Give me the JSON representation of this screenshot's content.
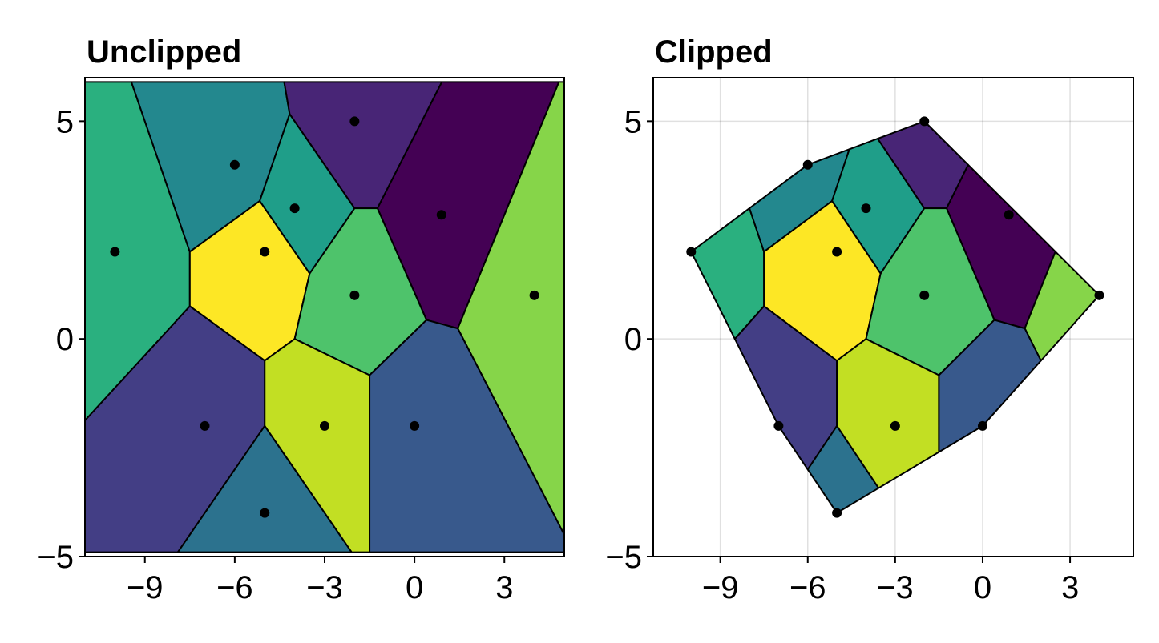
{
  "chart_data": [
    {
      "type": "voronoi",
      "title": "Unclipped",
      "clip": false,
      "grid": false,
      "x": [
        -10,
        -6,
        -4,
        -5,
        -2,
        0.9,
        -2,
        4,
        -7,
        -3,
        0,
        -5
      ],
      "y": [
        2,
        4,
        3,
        2,
        5,
        2.85,
        1,
        1,
        -2,
        -2,
        -2,
        -4
      ],
      "colors": [
        "#2ab07f",
        "#23888e",
        "#1f9e89",
        "#fde725",
        "#482576",
        "#440154",
        "#4ec36b",
        "#86d549",
        "#433e85",
        "#c2df23",
        "#38598c",
        "#2c728e"
      ],
      "point_color": "#000000",
      "bounding_box": [
        -11,
        5,
        -4.9,
        5.9
      ],
      "xlim": [
        -11,
        5
      ],
      "ylim": [
        -5,
        6
      ],
      "xticks": [
        {
          "value": -9,
          "label": "−9"
        },
        {
          "value": -6,
          "label": "−6"
        },
        {
          "value": -3,
          "label": "−3"
        },
        0,
        3
      ],
      "yticks": [
        {
          "value": -5,
          "label": "−5"
        },
        0,
        5
      ]
    },
    {
      "type": "voronoi",
      "title": "Clipped",
      "clip": true,
      "grid": true,
      "x": [
        -10,
        -6,
        -4,
        -5,
        -2,
        0.9,
        -2,
        4,
        -7,
        -3,
        0,
        -5
      ],
      "y": [
        2,
        4,
        3,
        2,
        5,
        2.85,
        1,
        1,
        -2,
        -2,
        -2,
        -4
      ],
      "colors": [
        "#2ab07f",
        "#23888e",
        "#1f9e89",
        "#fde725",
        "#482576",
        "#440154",
        "#4ec36b",
        "#86d549",
        "#433e85",
        "#c2df23",
        "#38598c",
        "#2c728e"
      ],
      "point_color": "#000000",
      "xlim": [
        -11.3,
        5.17
      ],
      "ylim": [
        -5,
        6
      ],
      "xticks": [
        {
          "value": -9,
          "label": "−9"
        },
        {
          "value": -6,
          "label": "−6"
        },
        {
          "value": -3,
          "label": "−3"
        },
        0,
        3
      ],
      "yticks": [
        {
          "value": -5,
          "label": "−5"
        },
        0,
        5
      ]
    }
  ]
}
